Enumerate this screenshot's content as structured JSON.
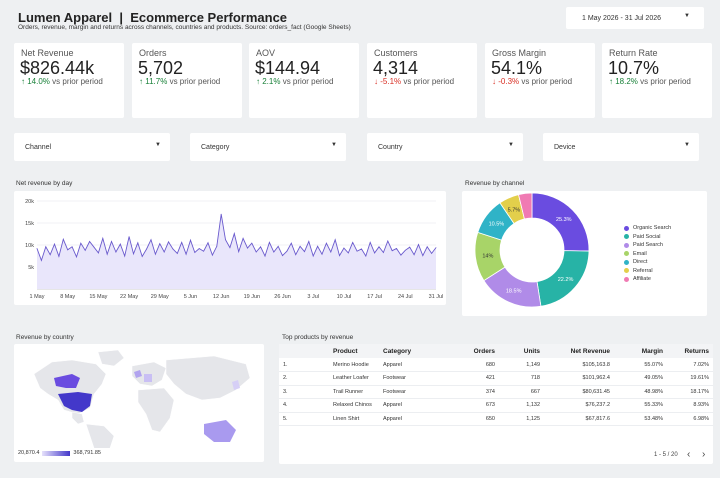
{
  "header": {
    "title": "Lumen Apparel  |  Ecommerce Performance",
    "subtitle": "Orders, revenue, margin and returns across channels, countries and products. Source: orders_fact (Google Sheets)",
    "date_range": "1 May 2026 - 31 Jul 2026"
  },
  "kpis": [
    {
      "label": "Net Revenue",
      "value": "$826.44k",
      "arrow": "↑",
      "delta": "14.0%",
      "direction": "up",
      "suffix": "vs prior period"
    },
    {
      "label": "Orders",
      "value": "5,702",
      "arrow": "↑",
      "delta": "11.7%",
      "direction": "up",
      "suffix": "vs prior period"
    },
    {
      "label": "AOV",
      "value": "$144.94",
      "arrow": "↑",
      "delta": "2.1%",
      "direction": "up",
      "suffix": "vs prior period"
    },
    {
      "label": "Customers",
      "value": "4,314",
      "arrow": "↓",
      "delta": "-5.1%",
      "direction": "down",
      "suffix": "vs prior period"
    },
    {
      "label": "Gross Margin",
      "value": "54.1%",
      "arrow": "↓",
      "delta": "-0.3%",
      "direction": "down",
      "suffix": "vs prior period"
    },
    {
      "label": "Return Rate",
      "value": "10.7%",
      "arrow": "↑",
      "delta": "18.2%",
      "direction": "up",
      "suffix": "vs prior period"
    }
  ],
  "filters": [
    {
      "label": "Channel"
    },
    {
      "label": "Category"
    },
    {
      "label": "Country"
    },
    {
      "label": "Device"
    }
  ],
  "colors": {
    "accent": "#7b68ee",
    "up": "#188038",
    "down": "#d93025"
  },
  "revenue_by_day": {
    "panel_title": "Net revenue by day",
    "chart_data": {
      "type": "area",
      "y_ticks": [
        "5k",
        "10k",
        "15k",
        "20k"
      ],
      "ylim": [
        0,
        20000
      ],
      "x_tick_labels": [
        "1 May",
        "8 May",
        "15 May",
        "22 May",
        "29 May",
        "5 Jun",
        "12 Jun",
        "19 Jun",
        "26 Jun",
        "3 Jul",
        "10 Jul",
        "17 Jul",
        "24 Jul",
        "31 Jul"
      ],
      "x": [
        "1 May",
        "2 May",
        "3 May",
        "4 May",
        "5 May",
        "6 May",
        "7 May",
        "8 May",
        "9 May",
        "10 May",
        "11 May",
        "12 May",
        "13 May",
        "14 May",
        "15 May",
        "16 May",
        "17 May",
        "18 May",
        "19 May",
        "20 May",
        "21 May",
        "22 May",
        "23 May",
        "24 May",
        "25 May",
        "26 May",
        "27 May",
        "28 May",
        "29 May",
        "30 May",
        "31 May",
        "1 Jun",
        "2 Jun",
        "3 Jun",
        "4 Jun",
        "5 Jun",
        "6 Jun",
        "7 Jun",
        "8 Jun",
        "9 Jun",
        "10 Jun",
        "11 Jun",
        "12 Jun",
        "13 Jun",
        "14 Jun",
        "15 Jun",
        "16 Jun",
        "17 Jun",
        "18 Jun",
        "19 Jun",
        "20 Jun",
        "21 Jun",
        "22 Jun",
        "23 Jun",
        "24 Jun",
        "25 Jun",
        "26 Jun",
        "27 Jun",
        "28 Jun",
        "29 Jun",
        "30 Jun",
        "1 Jul",
        "2 Jul",
        "3 Jul",
        "4 Jul",
        "5 Jul",
        "6 Jul",
        "7 Jul",
        "8 Jul",
        "9 Jul",
        "10 Jul",
        "11 Jul",
        "12 Jul",
        "13 Jul",
        "14 Jul",
        "15 Jul",
        "16 Jul",
        "17 Jul",
        "18 Jul",
        "19 Jul",
        "20 Jul",
        "21 Jul",
        "22 Jul",
        "23 Jul",
        "24 Jul",
        "25 Jul",
        "26 Jul",
        "27 Jul",
        "28 Jul",
        "29 Jul",
        "30 Jul",
        "31 Jul"
      ],
      "values": [
        9200,
        6500,
        9600,
        7800,
        10200,
        7400,
        11300,
        8900,
        9600,
        7300,
        10400,
        8800,
        10800,
        9500,
        8200,
        11500,
        7900,
        10800,
        8400,
        10200,
        7500,
        11900,
        8000,
        10500,
        7400,
        9100,
        11200,
        7900,
        10300,
        8400,
        10700,
        9100,
        8100,
        10600,
        7900,
        11100,
        8300,
        9200,
        8600,
        10500,
        7700,
        9700,
        17000,
        11200,
        9400,
        12600,
        8500,
        11500,
        9300,
        10400,
        8400,
        9600,
        7500,
        10600,
        8400,
        9700,
        7600,
        8600,
        10400,
        7800,
        9700,
        8500,
        10800,
        7500,
        9700,
        7900,
        10400,
        8400,
        11200,
        7600,
        9300,
        8200,
        10600,
        8600,
        9100,
        7500,
        10600,
        8200,
        9600,
        8300,
        10900,
        8700,
        9200,
        7700,
        8800,
        9500,
        7800,
        10100,
        7600,
        9600,
        8100,
        9400
      ]
    }
  },
  "revenue_by_channel": {
    "panel_title": "Revenue by channel",
    "chart_data": {
      "type": "pie",
      "categories": [
        "Organic Search",
        "Paid Social",
        "Paid Search",
        "Email",
        "Direct",
        "Referral",
        "Affiliate"
      ],
      "values": [
        25.3,
        22.2,
        18.5,
        14.0,
        10.5,
        5.7,
        3.8
      ],
      "labels": [
        "25.3%",
        "22.2%",
        "18.5%",
        "14%",
        "10.5%",
        "5.7%",
        ""
      ],
      "colors": [
        "#6a4ce0",
        "#27b3a6",
        "#b08be8",
        "#a8d468",
        "#2fb3c7",
        "#e3cf4b",
        "#f07ab3"
      ],
      "legend_position": "right"
    }
  },
  "revenue_by_country": {
    "panel_title": "Revenue by country",
    "scale_min": "20,870.4",
    "scale_max": "368,791.85"
  },
  "top_products": {
    "panel_title": "Top products by revenue",
    "columns": [
      "",
      "Product",
      "Category",
      "Orders",
      "Units",
      "Net Revenue",
      "Margin",
      "Returns"
    ],
    "rows": [
      [
        "1.",
        "Merino Hoodie",
        "Apparel",
        "680",
        "1,149",
        "$105,163.8",
        "55.07%",
        "7.02%"
      ],
      [
        "2.",
        "Leather Loafer",
        "Footwear",
        "421",
        "718",
        "$101,962.4",
        "49.05%",
        "19.61%"
      ],
      [
        "3.",
        "Trail Runner",
        "Footwear",
        "374",
        "667",
        "$80,631.45",
        "48.98%",
        "18.17%"
      ],
      [
        "4.",
        "Relaxed Chinos",
        "Apparel",
        "673",
        "1,132",
        "$76,237.2",
        "55.33%",
        "8.93%"
      ],
      [
        "5.",
        "Linen Shirt",
        "Apparel",
        "650",
        "1,125",
        "$67,817.6",
        "53.48%",
        "6.98%"
      ]
    ],
    "pagination": "1 - 5 / 20",
    "prev": "‹",
    "next": "›"
  }
}
